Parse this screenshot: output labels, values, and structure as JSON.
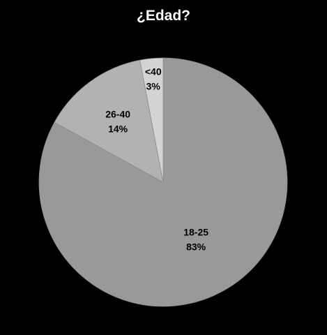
{
  "chart_data": {
    "type": "pie",
    "title": "¿Edad?",
    "categories": [
      "18-25",
      "26-40",
      "<40"
    ],
    "values": [
      83,
      14,
      3
    ],
    "value_labels": [
      "83%",
      "14%",
      "3%"
    ],
    "colors": [
      "#999999",
      "#b2b2b2",
      "#d4d4d4"
    ],
    "background": "#000000",
    "start_angle": "12 o'clock",
    "direction": "clockwise",
    "legend": "none"
  }
}
